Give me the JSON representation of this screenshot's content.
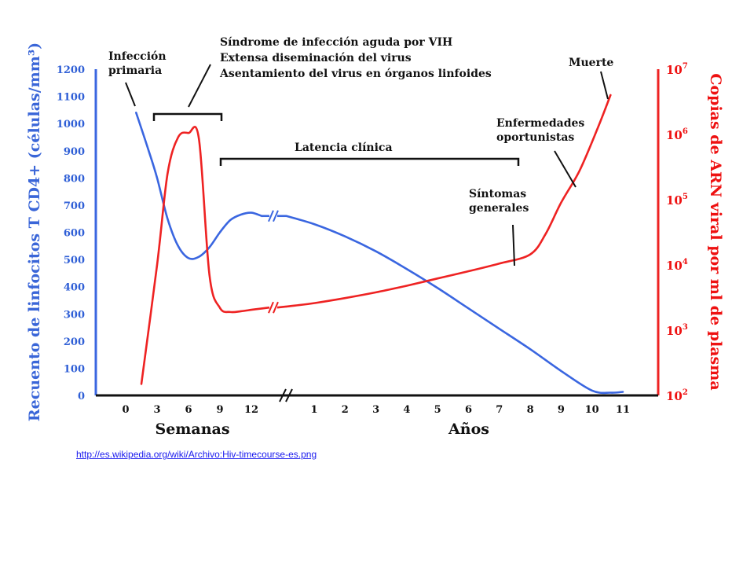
{
  "chart_data": {
    "type": "line",
    "title": "",
    "x_axis": {
      "segments": [
        {
          "name": "weeks",
          "label": "Semanas",
          "ticks": [
            "0",
            "3",
            "6",
            "9",
            "12"
          ]
        },
        {
          "name": "years",
          "label": "Años",
          "ticks": [
            "1",
            "2",
            "3",
            "4",
            "5",
            "6",
            "7",
            "8",
            "9",
            "10",
            "11"
          ]
        }
      ]
    },
    "y_left": {
      "label": "Recuento de linfocitos T CD4+ (células/mm³)",
      "ticks": [
        "0",
        "100",
        "200",
        "300",
        "400",
        "500",
        "600",
        "700",
        "800",
        "900",
        "1000",
        "1100",
        "1200"
      ],
      "ylim": [
        0,
        1200
      ]
    },
    "y_right": {
      "label": "Copias de ARN viral por ml de plasma",
      "scale": "log",
      "ticks": [
        {
          "base": "10",
          "exp": "2"
        },
        {
          "base": "10",
          "exp": "3"
        },
        {
          "base": "10",
          "exp": "4"
        },
        {
          "base": "10",
          "exp": "5"
        },
        {
          "base": "10",
          "exp": "6"
        },
        {
          "base": "10",
          "exp": "7"
        }
      ],
      "ylim": [
        100,
        10000000
      ]
    },
    "series": [
      {
        "axis": "left",
        "color": "#3a66e0",
        "weeks": [
          [
            1,
            1040
          ],
          [
            2.2,
            900
          ],
          [
            3,
            800
          ],
          [
            4,
            650
          ],
          [
            5,
            550
          ],
          [
            6,
            505
          ],
          [
            7,
            510
          ],
          [
            8,
            545
          ],
          [
            9,
            600
          ],
          [
            10,
            645
          ],
          [
            11,
            665
          ],
          [
            12,
            672
          ],
          [
            13,
            660
          ]
        ],
        "years": [
          [
            0.1,
            660
          ],
          [
            1,
            630
          ],
          [
            2,
            585
          ],
          [
            3,
            530
          ],
          [
            4,
            465
          ],
          [
            5,
            395
          ],
          [
            6,
            320
          ],
          [
            7,
            245
          ],
          [
            8,
            170
          ],
          [
            9,
            90
          ],
          [
            10,
            18
          ],
          [
            10.6,
            10
          ],
          [
            11,
            13
          ]
        ]
      },
      {
        "axis": "right",
        "color": "#ee2222",
        "weeks": [
          [
            1.5,
            150
          ],
          [
            3,
            10000
          ],
          [
            4,
            250000
          ],
          [
            5,
            900000
          ],
          [
            6,
            1050000
          ],
          [
            7,
            850000
          ],
          [
            8,
            7000
          ],
          [
            9,
            2200
          ],
          [
            10,
            1900
          ],
          [
            11,
            1950
          ],
          [
            12,
            2050
          ],
          [
            13,
            2150
          ]
        ],
        "years": [
          [
            0.1,
            2300
          ],
          [
            1,
            2600
          ],
          [
            2,
            3100
          ],
          [
            3,
            3800
          ],
          [
            4,
            4800
          ],
          [
            5,
            6200
          ],
          [
            6,
            8000
          ],
          [
            7,
            10500
          ],
          [
            8,
            14500
          ],
          [
            8.5,
            30000
          ],
          [
            9,
            90000
          ],
          [
            9.6,
            280000
          ],
          [
            10.2,
            1300000
          ],
          [
            10.6,
            4000000
          ]
        ]
      }
    ],
    "annotations": {
      "primary_infection": [
        "Infección",
        "primaria"
      ],
      "acute_syndrome": [
        "Síndrome de infección aguda por VIH",
        "Extensa diseminación del virus",
        "Asentamiento del virus en órganos linfoides"
      ],
      "clinical_latency": "Latencia clínica",
      "general_symptoms": [
        "Síntomas",
        "generales"
      ],
      "opportunistic_diseases": [
        "Enfermedades",
        "oportunistas"
      ],
      "death": "Muerte"
    },
    "grid": false,
    "legend": "none"
  },
  "source_link": "http://es.wikipedia.org/wiki/Archivo:Hiv-timecourse-es.png",
  "colors": {
    "cd4": "#3a66e0",
    "rna": "#ee2222",
    "axis": "#111111"
  }
}
